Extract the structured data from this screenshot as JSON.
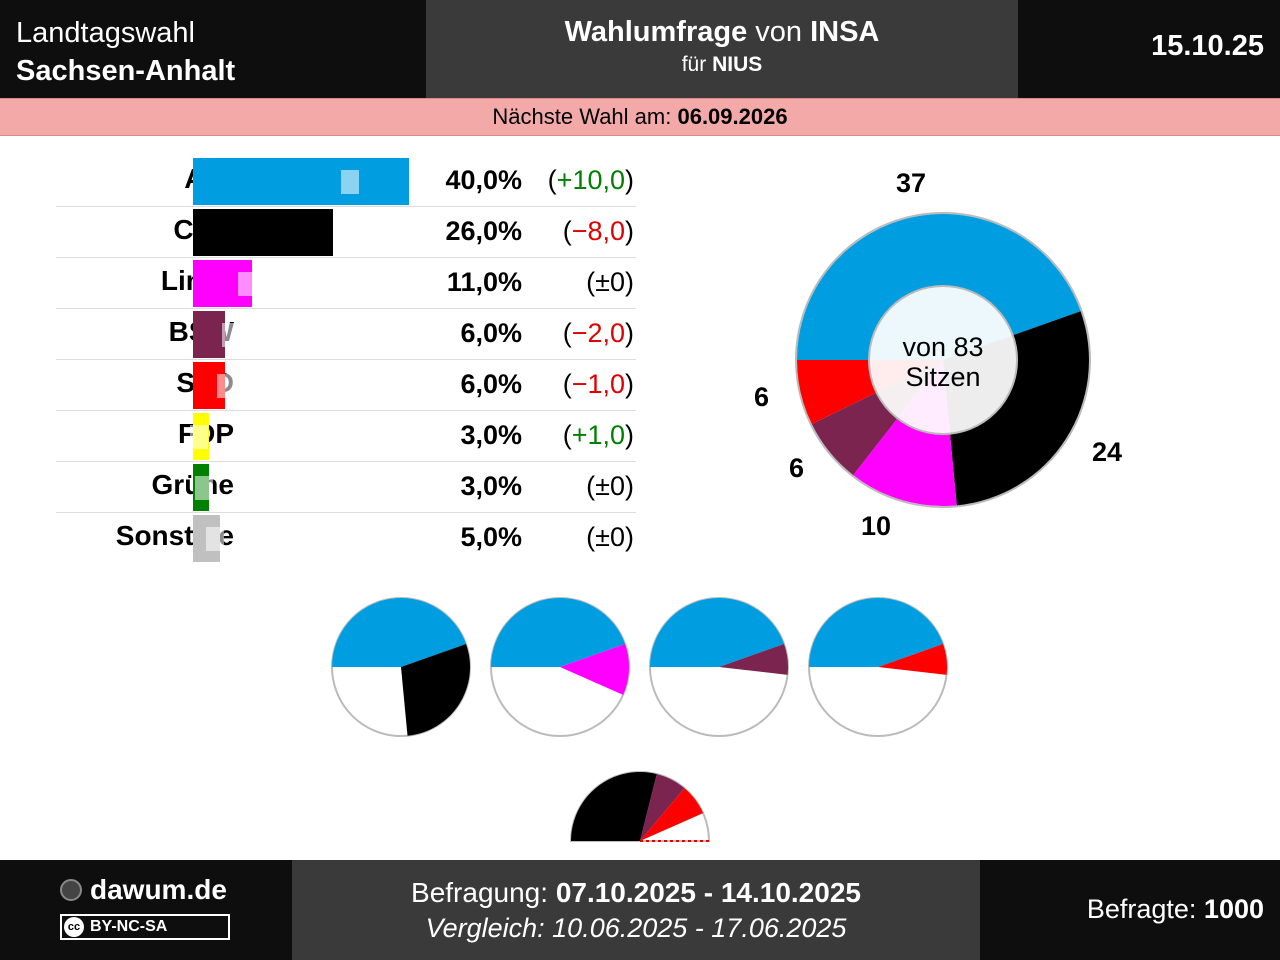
{
  "header": {
    "election_line1": "Landtagswahl",
    "election_line2": "Sachsen-Anhalt",
    "poll_title_bold": "Wahlumfrage",
    "poll_title_von": "von",
    "poll_institute": "INSA",
    "client_prefix": "für",
    "client": "NIUS",
    "date": "15.10.25"
  },
  "next_election": {
    "label": "Nächste Wahl am:",
    "date": "06.09.2026"
  },
  "chart_data": [
    {
      "type": "bar",
      "categories": [
        "AfD",
        "CDU",
        "Linke",
        "BSW",
        "SPD",
        "FDP",
        "Grüne",
        "Sonstige"
      ],
      "values": [
        40.0,
        26.0,
        11.0,
        6.0,
        6.0,
        3.0,
        3.0,
        5.0
      ],
      "previous_values": [
        30.0,
        34.0,
        11.0,
        8.0,
        7.0,
        2.0,
        3.0,
        5.0
      ],
      "value_labels": [
        "40,0%",
        "26,0%",
        "11,0%",
        "6,0%",
        "6,0%",
        "3,0%",
        "3,0%",
        "5,0%"
      ],
      "change_labels": [
        "+10,0",
        "−8,0",
        "±0",
        "−2,0",
        "−1,0",
        "+1,0",
        "±0",
        "±0"
      ],
      "change_direction": [
        "up",
        "down",
        "none",
        "down",
        "down",
        "up",
        "none",
        "none"
      ],
      "colors": [
        "#009ee0",
        "#000000",
        "#ff00ff",
        "#7b2450",
        "#ff0000",
        "#ffff00",
        "#008000",
        "#c0c0c0"
      ]
    },
    {
      "type": "pie",
      "subtype": "donut",
      "categories": [
        "AfD",
        "CDU",
        "Linke",
        "BSW",
        "SPD"
      ],
      "values": [
        37,
        24,
        10,
        6,
        6
      ],
      "colors": [
        "#009ee0",
        "#000000",
        "#ff00ff",
        "#7b2450",
        "#ff0000"
      ],
      "center_line1": "von 83",
      "center_line2": "Sitzen",
      "total": 83
    },
    {
      "type": "pie",
      "subtype": "coalition_circles",
      "coalitions": [
        {
          "parties": [
            "AfD",
            "CDU"
          ],
          "seats": [
            37,
            24
          ],
          "colors": [
            "#009ee0",
            "#000000"
          ]
        },
        {
          "parties": [
            "AfD",
            "Linke"
          ],
          "seats": [
            37,
            10
          ],
          "colors": [
            "#009ee0",
            "#ff00ff"
          ]
        },
        {
          "parties": [
            "AfD",
            "BSW"
          ],
          "seats": [
            37,
            6
          ],
          "colors": [
            "#009ee0",
            "#7b2450"
          ]
        },
        {
          "parties": [
            "AfD",
            "SPD"
          ],
          "seats": [
            37,
            6
          ],
          "colors": [
            "#009ee0",
            "#ff0000"
          ]
        }
      ],
      "total": 83
    },
    {
      "type": "pie",
      "subtype": "half_circle",
      "parties": [
        "CDU",
        "BSW",
        "SPD"
      ],
      "seats": [
        24,
        6,
        6
      ],
      "colors": [
        "#000000",
        "#7b2450",
        "#ff0000"
      ],
      "total": 83
    }
  ],
  "footer": {
    "brand": "dawum.de",
    "license": "BY-NC-SA",
    "license_icon": "cc",
    "survey_label": "Befragung:",
    "survey_range": "07.10.2025 - 14.10.2025",
    "compare_label": "Vergleich:",
    "compare_range": "10.06.2025 - 17.06.2025",
    "respondents_label": "Befragte:",
    "respondents": "1000"
  }
}
